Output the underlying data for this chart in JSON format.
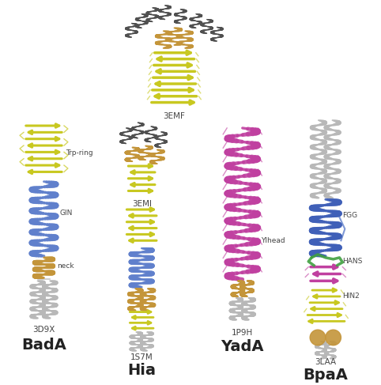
{
  "background_color": "#ffffff",
  "labels_bottom": [
    "BadA",
    "Hia",
    "YadA",
    "BpaA"
  ],
  "labels_pdb_bada": "3D9X",
  "labels_pdb_hia_bottom": "1S7M",
  "labels_pdb_hia_top": "3EMI",
  "labels_pdb_yada": "1P9H",
  "labels_pdb_bpaa": "3LAA",
  "labels_pdb_top": "3EMF",
  "annotation_bada": [
    "Trp-ring",
    "GIN",
    "neck"
  ],
  "annotation_yada": "YIhead",
  "annotation_bpaa": [
    "FGG",
    "HANS",
    "HIN2"
  ],
  "fig_width": 4.82,
  "fig_height": 4.87,
  "dpi": 100,
  "colors": {
    "yellow": "#c8c820",
    "blue": "#4060b8",
    "blue_light": "#6080cc",
    "tan": "#c4953a",
    "gray_light": "#b8b8b8",
    "gray_mid": "#888888",
    "gray_dark": "#505050",
    "magenta": "#c040a0",
    "green": "#40a040",
    "white": "#ffffff"
  }
}
